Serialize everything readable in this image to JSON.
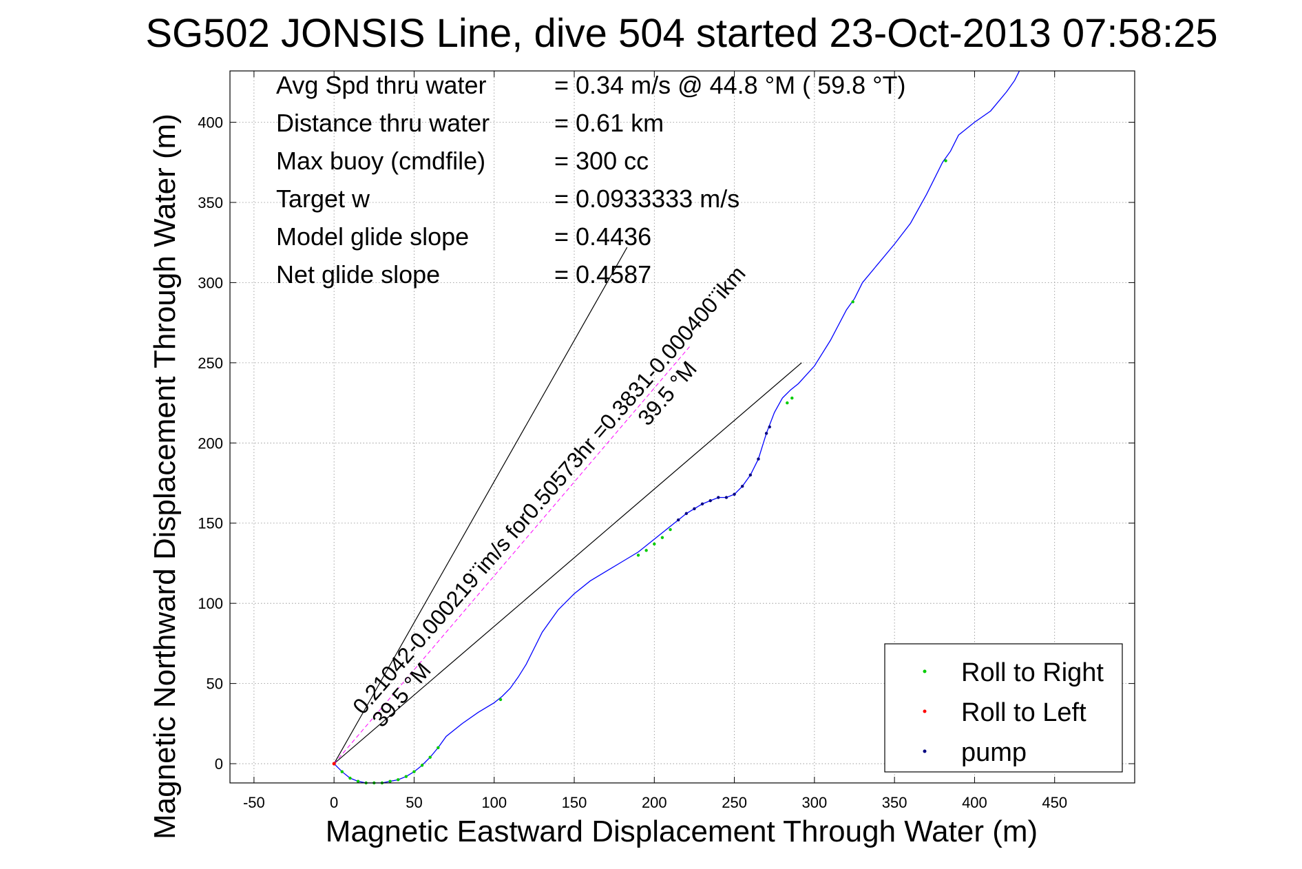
{
  "chart_data": {
    "type": "line",
    "title": "SG502 JONSIS Line, dive 504 started 23-Oct-2013 07:58:25",
    "xlabel": "Magnetic Eastward Displacement Through Water (m)",
    "ylabel": "Magnetic Northward Displacement Through Water (m)",
    "xlim": [
      -65,
      500
    ],
    "ylim": [
      -12,
      432
    ],
    "xticks": [
      -50,
      0,
      50,
      100,
      150,
      200,
      250,
      300,
      350,
      400,
      450
    ],
    "yticks": [
      0,
      50,
      100,
      150,
      200,
      250,
      300,
      350,
      400
    ],
    "grid": true,
    "legend_position": "bottom-right",
    "info": [
      {
        "label": "Avg Spd thru water",
        "value": "=  0.34 m/s @  44.8 °M ( 59.8 °T)"
      },
      {
        "label": "Distance thru water",
        "value": "=  0.61 km"
      },
      {
        "label": "Max buoy (cmdfile)",
        "value": "= 300 cc"
      },
      {
        "label": "Target w",
        "value": "= 0.0933333 m/s"
      },
      {
        "label": "Model glide slope",
        "value": "= 0.4436"
      },
      {
        "label": "Net glide slope",
        "value": "= 0.4587"
      }
    ],
    "annotations": [
      {
        "text": "0.21042-0.000219¨im/s for0.50573hr =0.3831-0.000400¨ikm",
        "x": 18,
        "y": 30,
        "angle_deg": 49
      },
      {
        "text": "39.5 °M",
        "x": 30,
        "y": 22,
        "angle_deg": 49
      },
      {
        "text": "39.5 °M",
        "x": 196,
        "y": 210,
        "angle_deg": 49
      }
    ],
    "reference_lines": [
      {
        "name": "cone-line-1",
        "x": [
          0,
          183
        ],
        "y": [
          0,
          322
        ]
      },
      {
        "name": "cone-line-2",
        "x": [
          0,
          292
        ],
        "y": [
          0,
          250
        ]
      },
      {
        "name": "current-line",
        "x": [
          0,
          222
        ],
        "y": [
          0,
          260
        ]
      }
    ],
    "series": [
      {
        "name": "",
        "color": "#0000ff",
        "x": [
          0,
          5,
          10,
          15,
          20,
          25,
          30,
          35,
          40,
          45,
          50,
          55,
          60,
          65,
          70,
          80,
          90,
          100,
          105,
          110,
          115,
          120,
          125,
          130,
          140,
          150,
          160,
          170,
          180,
          190,
          200,
          210,
          215,
          220,
          225,
          230,
          235,
          240,
          245,
          250,
          255,
          260,
          265,
          270,
          275,
          280,
          285,
          290,
          300,
          310,
          320,
          325,
          330,
          340,
          350,
          360,
          370,
          375,
          380,
          385,
          390,
          400,
          410,
          420,
          425,
          428
        ],
        "y": [
          0,
          -5,
          -9,
          -11,
          -12,
          -12,
          -12,
          -11,
          -10,
          -8,
          -5,
          -1,
          4,
          10,
          17,
          25,
          32,
          38,
          42,
          47,
          54,
          62,
          72,
          82,
          96,
          106,
          114,
          120,
          126,
          132,
          140,
          148,
          152,
          156,
          159,
          162,
          164,
          166,
          166,
          168,
          173,
          180,
          190,
          206,
          219,
          228,
          233,
          237,
          248,
          264,
          283,
          290,
          300,
          312,
          324,
          337,
          355,
          365,
          375,
          382,
          392,
          400,
          407,
          419,
          426,
          432
        ]
      }
    ],
    "markers": [
      {
        "name": "Roll to Right",
        "color": "#00cc00",
        "x": [
          5,
          10,
          15,
          20,
          25,
          30,
          35,
          40,
          45,
          50,
          55,
          60,
          65,
          104,
          190,
          195,
          200,
          205,
          210,
          283,
          286,
          324,
          382
        ],
        "y": [
          -5,
          -9,
          -11,
          -12,
          -12,
          -12,
          -11,
          -10,
          -8,
          -5,
          -1,
          4,
          10,
          40,
          130,
          133,
          137,
          141,
          146,
          225,
          228,
          288,
          376
        ]
      },
      {
        "name": "Roll to Left",
        "color": "#ff0000",
        "x": [
          0
        ],
        "y": [
          0
        ]
      },
      {
        "name": "pump",
        "color": "#000080",
        "x": [
          215,
          220,
          225,
          230,
          235,
          240,
          245,
          250,
          255,
          260,
          265,
          270,
          272
        ],
        "y": [
          152,
          156,
          159,
          162,
          164,
          166,
          166,
          168,
          173,
          180,
          190,
          206,
          210
        ]
      }
    ]
  }
}
